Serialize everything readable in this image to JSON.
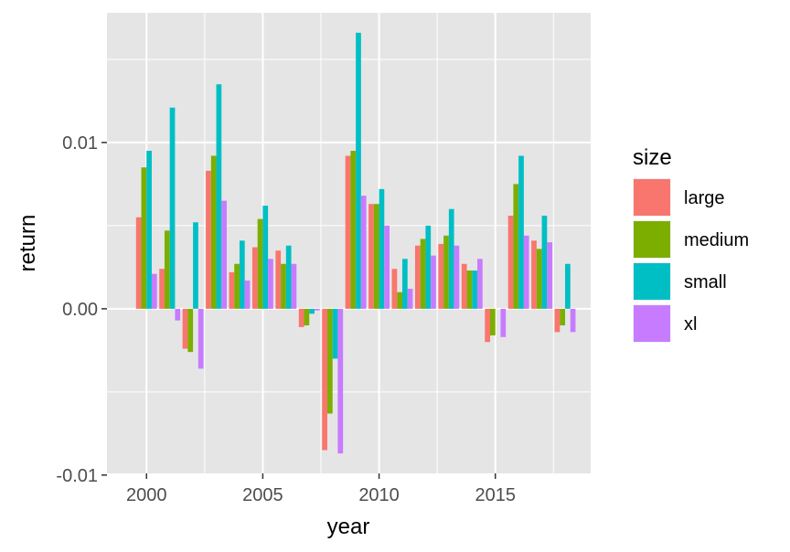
{
  "chart_data": {
    "type": "bar",
    "xlabel": "year",
    "ylabel": "return",
    "legend_title": "size",
    "legend_position": "right",
    "grid": true,
    "background": "#e5e5e5",
    "xlim": [
      1998.3,
      2019.1
    ],
    "ylim": [
      -0.0099,
      0.0178
    ],
    "x_ticks": [
      2000,
      2005,
      2010,
      2015
    ],
    "x_tick_labels": [
      "2000",
      "2005",
      "2010",
      "2015"
    ],
    "y_ticks": [
      -0.01,
      0.0,
      0.01
    ],
    "y_tick_labels": [
      "-0.01",
      "0.00",
      "0.01"
    ],
    "x": [
      2000,
      2001,
      2002,
      2003,
      2004,
      2005,
      2006,
      2007,
      2008,
      2009,
      2010,
      2011,
      2012,
      2013,
      2014,
      2015,
      2016,
      2017,
      2018
    ],
    "series": [
      {
        "name": "large",
        "color": "#F8766D",
        "values": [
          0.0055,
          0.0024,
          -0.0024,
          0.0083,
          0.0022,
          0.0037,
          0.0035,
          -0.0011,
          -0.0085,
          0.0092,
          0.0063,
          0.0024,
          0.0038,
          0.0039,
          0.0027,
          -0.002,
          0.0056,
          0.0041,
          -0.0014
        ]
      },
      {
        "name": "medium",
        "color": "#7CAE00",
        "values": [
          0.0085,
          0.0047,
          -0.0026,
          0.0092,
          0.0027,
          0.0054,
          0.0027,
          -0.001,
          -0.0063,
          0.0095,
          0.0063,
          0.001,
          0.0042,
          0.0044,
          0.0023,
          -0.0016,
          0.0075,
          0.0036,
          -0.001
        ]
      },
      {
        "name": "small",
        "color": "#00BFC4",
        "values": [
          0.0095,
          0.0121,
          0.0052,
          0.0135,
          0.0041,
          0.0062,
          0.0038,
          -0.0003,
          -0.003,
          0.0166,
          0.0072,
          0.003,
          0.005,
          0.006,
          0.0023,
          0.0,
          0.0092,
          0.0056,
          0.0027
        ]
      },
      {
        "name": "xl",
        "color": "#C77CFF",
        "values": [
          0.0021,
          -0.0007,
          -0.0036,
          0.0065,
          0.0017,
          0.003,
          0.0027,
          -0.0001,
          -0.0087,
          0.0068,
          0.005,
          0.0012,
          0.0032,
          0.0038,
          0.003,
          -0.0017,
          0.0044,
          0.004,
          -0.0014
        ]
      }
    ]
  }
}
